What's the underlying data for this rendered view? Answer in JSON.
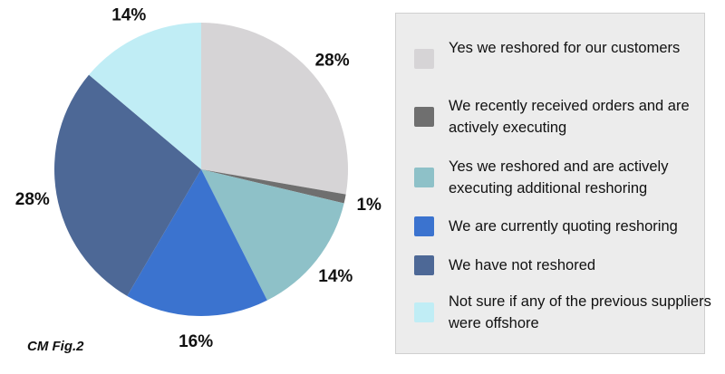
{
  "caption": "CM Fig.2",
  "chart_data": {
    "type": "pie",
    "start_angle_deg": 0,
    "direction": "clockwise",
    "legend_position": "right",
    "slices": [
      {
        "label": "Yes we reshored for our customers",
        "value": 28,
        "display": "28%",
        "color": "#d6d4d6"
      },
      {
        "label": "We recently received orders and are actively executing",
        "value": 1,
        "display": "1%",
        "color": "#6f6f6f"
      },
      {
        "label": "Yes we reshored and are actively executing additional reshoring",
        "value": 14,
        "display": "14%",
        "color": "#8ec1c8"
      },
      {
        "label": "We are currently quoting reshoring",
        "value": 16,
        "display": "16%",
        "color": "#3b73cf"
      },
      {
        "label": "We have not reshored",
        "value": 28,
        "display": "28%",
        "color": "#4d6896"
      },
      {
        "label": "Not sure if any of the previous suppliers were offshore",
        "value": 14,
        "display": "14%",
        "color": "#c0edf5"
      }
    ]
  }
}
